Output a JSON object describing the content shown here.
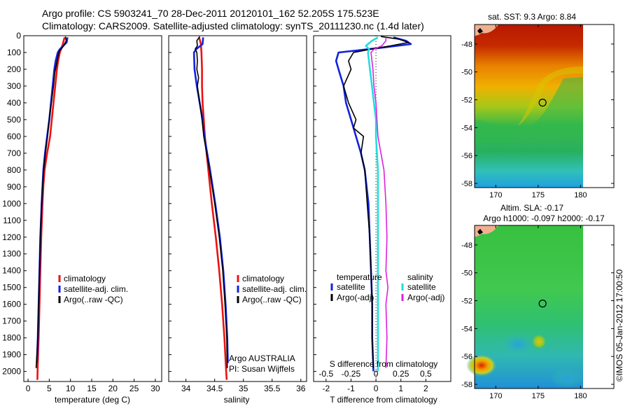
{
  "header": {
    "line1": "Argo profile: CS 5903241_70 28-Dec-2011 20120101_162 52.205S 175.523E",
    "line2": "Climatology: CARS2009. Satellite-adjusted climatology: synTS_20111230.nc (1.4d later)"
  },
  "colors": {
    "climatology": "#ee1111",
    "satellite": "#1122dd",
    "argo": "#000000",
    "satellite_salinity": "#22dddd",
    "argo_salinity": "#dd22dd"
  },
  "chart_data": [
    {
      "type": "line",
      "name": "temperature-profile",
      "xlabel": "temperature (deg C)",
      "ylabel": "",
      "xlim": [
        -1,
        31.5
      ],
      "ylim": [
        2060,
        0
      ],
      "xticks": [
        "0",
        "5",
        "10",
        "15",
        "20",
        "25",
        "30"
      ],
      "xtick_values": [
        0,
        5,
        10,
        15,
        20,
        25,
        30
      ],
      "yticks": [
        "0",
        "100",
        "200",
        "300",
        "400",
        "500",
        "600",
        "700",
        "800",
        "900",
        "1000",
        "1100",
        "1200",
        "1300",
        "1400",
        "1500",
        "1600",
        "1700",
        "1800",
        "1900",
        "2000"
      ],
      "ytick_values": [
        0,
        100,
        200,
        300,
        400,
        500,
        600,
        700,
        800,
        900,
        1000,
        1100,
        1200,
        1300,
        1400,
        1500,
        1600,
        1700,
        1800,
        1900,
        2000
      ],
      "legend": [
        "climatology",
        "satellite-adj. clim.",
        "Argo(..raw -QC)"
      ],
      "legend_position": "lower-right",
      "series": [
        {
          "name": "climatology",
          "color_key": "climatology",
          "depth": [
            10,
            50,
            100,
            150,
            200,
            300,
            400,
            500,
            600,
            700,
            800,
            900,
            1000,
            1200,
            1400,
            1600,
            1800,
            1950,
            2050
          ],
          "values": [
            8.6,
            8.2,
            7.5,
            7.1,
            6.8,
            6.4,
            6.0,
            5.6,
            5.2,
            4.5,
            3.9,
            3.6,
            3.4,
            3.1,
            2.9,
            2.7,
            2.5,
            2.3,
            2.2
          ]
        },
        {
          "name": "satellite-adj. clim.",
          "color_key": "satellite",
          "depth": [
            10,
            40,
            60,
            80,
            100,
            150,
            200,
            300,
            400,
            500,
            600,
            700,
            800,
            900,
            1000,
            1200,
            1400,
            1600,
            1800,
            1950
          ],
          "values": [
            9.3,
            9.1,
            8.3,
            7.5,
            7.0,
            6.5,
            6.2,
            5.8,
            5.4,
            5.0,
            4.5,
            4.0,
            3.6,
            3.4,
            3.2,
            2.9,
            2.7,
            2.5,
            2.3,
            2.1
          ]
        },
        {
          "name": "Argo(..raw -QC)",
          "color_key": "argo",
          "depth": [
            5,
            30,
            60,
            80,
            90,
            120,
            170,
            220,
            300,
            400,
            500,
            600,
            700,
            800,
            900,
            1000,
            1200,
            1400,
            1600,
            1800,
            1980
          ],
          "values": [
            8.8,
            9.0,
            8.4,
            7.8,
            7.4,
            7.1,
            6.7,
            6.3,
            6.0,
            5.5,
            5.0,
            4.6,
            4.1,
            3.7,
            3.4,
            3.2,
            2.9,
            2.7,
            2.5,
            2.3,
            1.9
          ]
        }
      ]
    },
    {
      "type": "line",
      "name": "salinity-profile",
      "xlabel": "salinity",
      "ylabel": "",
      "xlim": [
        33.7,
        36.1
      ],
      "ylim": [
        2060,
        0
      ],
      "xticks": [
        "34",
        "34.5",
        "35",
        "35.5",
        "36"
      ],
      "xtick_values": [
        34,
        34.5,
        35,
        35.5,
        36
      ],
      "legend": [
        "climatology",
        "satellite-adj. clim.",
        "Argo(..raw -QC)"
      ],
      "legend_position": "lower-right",
      "annotation": [
        "Argo AUSTRALIA",
        "PI: Susan Wijffels"
      ],
      "series": [
        {
          "name": "climatology",
          "color_key": "climatology",
          "depth": [
            10,
            50,
            100,
            200,
            300,
            400,
            500,
            600,
            700,
            800,
            1000,
            1200,
            1400,
            1600,
            1800,
            2000,
            2050
          ],
          "values": [
            34.23,
            34.26,
            34.27,
            34.28,
            34.28,
            34.29,
            34.31,
            34.33,
            34.36,
            34.39,
            34.45,
            34.52,
            34.58,
            34.63,
            34.67,
            34.7,
            34.71
          ]
        },
        {
          "name": "satellite-adj. clim.",
          "color_key": "satellite",
          "depth": [
            10,
            50,
            80,
            100,
            200,
            300,
            400,
            500,
            600,
            700,
            800,
            1000,
            1200,
            1400,
            1600,
            1800,
            1950
          ],
          "values": [
            34.3,
            34.29,
            34.18,
            34.14,
            34.15,
            34.19,
            34.24,
            34.29,
            34.32,
            34.37,
            34.42,
            34.51,
            34.59,
            34.65,
            34.69,
            34.72,
            34.73
          ]
        },
        {
          "name": "Argo(..raw -QC)",
          "color_key": "argo",
          "depth": [
            5,
            30,
            60,
            80,
            100,
            150,
            200,
            250,
            300,
            400,
            500,
            600,
            700,
            800,
            1000,
            1200,
            1400,
            1600,
            1800,
            1980
          ],
          "values": [
            34.24,
            34.19,
            34.2,
            34.16,
            34.19,
            34.2,
            34.19,
            34.22,
            34.2,
            34.24,
            34.28,
            34.31,
            34.36,
            34.41,
            34.5,
            34.58,
            34.64,
            34.68,
            34.71,
            34.72
          ]
        }
      ]
    },
    {
      "type": "line",
      "name": "difference-profile",
      "xlabel": "T difference from climatology",
      "xlabel_top": "S difference from climatology",
      "xlim": [
        -2.5,
        3
      ],
      "ylim": [
        2060,
        0
      ],
      "xticks": [
        "-2",
        "-1",
        "0",
        "1",
        "2"
      ],
      "xtick_values": [
        -2,
        -1,
        0,
        1,
        2
      ],
      "sticks": [
        "-0.5",
        "-0.25",
        "0",
        "0.25",
        "0.5"
      ],
      "stick_values": [
        -0.5,
        -0.25,
        0,
        0.25,
        0.5
      ],
      "legend_temperature_title": "temperature",
      "legend_salinity_title": "salinity",
      "legend_labels": [
        "satellite",
        "Argo(-adj)",
        "satellite",
        "Argo(-adj)"
      ],
      "series": [
        {
          "name": "T satellite",
          "color_key": "satellite",
          "depth": [
            10,
            30,
            50,
            70,
            100,
            150,
            200,
            300,
            400,
            500,
            600,
            700,
            800,
            1000,
            1200,
            1400,
            1600,
            1800,
            2000
          ],
          "values": [
            0.7,
            1.2,
            1.4,
            0.3,
            -1.5,
            -1.6,
            -1.5,
            -1.3,
            -1.2,
            -1.0,
            -0.8,
            -0.6,
            -0.45,
            -0.3,
            -0.25,
            -0.2,
            -0.15,
            -0.15,
            -0.1
          ]
        },
        {
          "name": "T Argo(-adj)",
          "color_key": "argo",
          "depth": [
            5,
            20,
            40,
            60,
            80,
            100,
            150,
            200,
            300,
            400,
            500,
            550,
            600,
            700,
            800,
            1000,
            1200,
            1400,
            1600,
            1800,
            1980
          ],
          "values": [
            0.2,
            0.9,
            1.3,
            0.6,
            -0.2,
            -0.9,
            -1.1,
            -1.0,
            -1.3,
            -1.1,
            -0.8,
            -0.9,
            -0.5,
            -0.6,
            -0.45,
            -0.35,
            -0.25,
            -0.2,
            -0.15,
            -0.15,
            -0.1
          ]
        },
        {
          "name": "S satellite",
          "color_key": "satellite_salinity",
          "depth": [
            10,
            30,
            60,
            80,
            100,
            150,
            200,
            300,
            400,
            500,
            600,
            700,
            800,
            1000,
            1200,
            1400,
            1600,
            1800,
            2000
          ],
          "values": [
            0.02,
            -0.04,
            -0.1,
            -0.07,
            -0.08,
            -0.07,
            -0.06,
            -0.04,
            -0.02,
            0.0,
            0.0,
            0.01,
            0.02,
            0.02,
            0.02,
            0.02,
            0.02,
            0.02,
            0.02
          ]
        },
        {
          "name": "S Argo(-adj)",
          "color_key": "argo_salinity",
          "depth": [
            10,
            30,
            60,
            80,
            100,
            150,
            200,
            300,
            400,
            600,
            800,
            1000,
            1200,
            1400,
            1500,
            1600,
            1800,
            1980
          ],
          "values": [
            0.1,
            0.1,
            0.06,
            -0.02,
            -0.05,
            -0.04,
            -0.03,
            -0.02,
            0.0,
            0.02,
            0.08,
            0.1,
            0.11,
            0.1,
            0.12,
            0.1,
            0.11,
            0.1
          ]
        }
      ]
    },
    {
      "type": "heatmap",
      "name": "satellite-sst-map",
      "title": "sat. SST: 9.3  Argo: 8.84",
      "xticks": [
        "170",
        "175",
        "180"
      ],
      "xtick_values": [
        170,
        175,
        180
      ],
      "yticks": [
        "-48",
        "-50",
        "-52",
        "-54",
        "-56",
        "-58"
      ],
      "ytick_values": [
        -48,
        -50,
        -52,
        -54,
        -56,
        -58
      ],
      "xlim": [
        167.5,
        180.3
      ],
      "ylim": [
        -58.3,
        -46.6
      ],
      "marker": {
        "lon": 175.523,
        "lat": -52.205
      }
    },
    {
      "type": "heatmap",
      "name": "altimetry-sla-map",
      "title_line1": "Altim. SLA: -0.17",
      "title_line2": "Argo h1000: -0.097 h2000: -0.17",
      "xticks": [
        "170",
        "175",
        "180"
      ],
      "xtick_values": [
        170,
        175,
        180
      ],
      "yticks": [
        "-48",
        "-50",
        "-52",
        "-54",
        "-56",
        "-58"
      ],
      "ytick_values": [
        -48,
        -50,
        -52,
        -54,
        -56,
        -58
      ],
      "xlim": [
        167.5,
        180.3
      ],
      "ylim": [
        -58.3,
        -46.6
      ],
      "marker": {
        "lon": 175.523,
        "lat": -52.205
      }
    }
  ],
  "credit": "©IMOS 05-Jan-2012 17:00:50"
}
